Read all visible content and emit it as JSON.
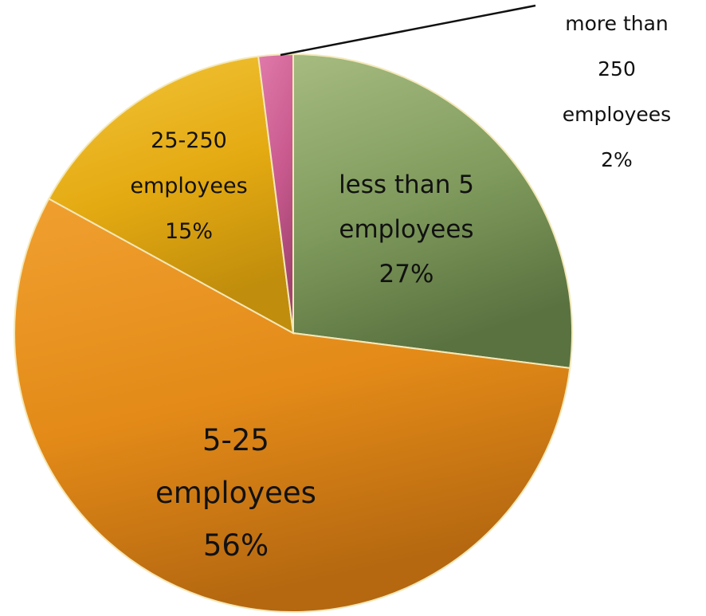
{
  "chart_data": {
    "type": "pie",
    "title": "",
    "legend": "none",
    "start_angle": "12 o'clock",
    "direction": "clockwise",
    "slices": [
      {
        "category": [
          "less than 5",
          "employees"
        ],
        "value": 27,
        "percent_label": "27%",
        "color": "#7f9a5c",
        "color_light": "#a6bb80",
        "color_dark": "#5a7240"
      },
      {
        "category": [
          "5-25",
          "employees"
        ],
        "value": 56,
        "percent_label": "56%",
        "color": "#e38a18",
        "color_light": "#f0a030",
        "color_dark": "#b56810"
      },
      {
        "category": [
          "25-250",
          "employees"
        ],
        "value": 15,
        "percent_label": "15%",
        "color": "#e4aa12",
        "color_light": "#f2c53a",
        "color_dark": "#c08d0c"
      },
      {
        "category": [
          "more than",
          "250",
          "employees"
        ],
        "value": 2,
        "percent_label": "2%",
        "color": "#c95a8f",
        "color_light": "#e07aaa",
        "color_dark": "#a24472"
      }
    ]
  }
}
